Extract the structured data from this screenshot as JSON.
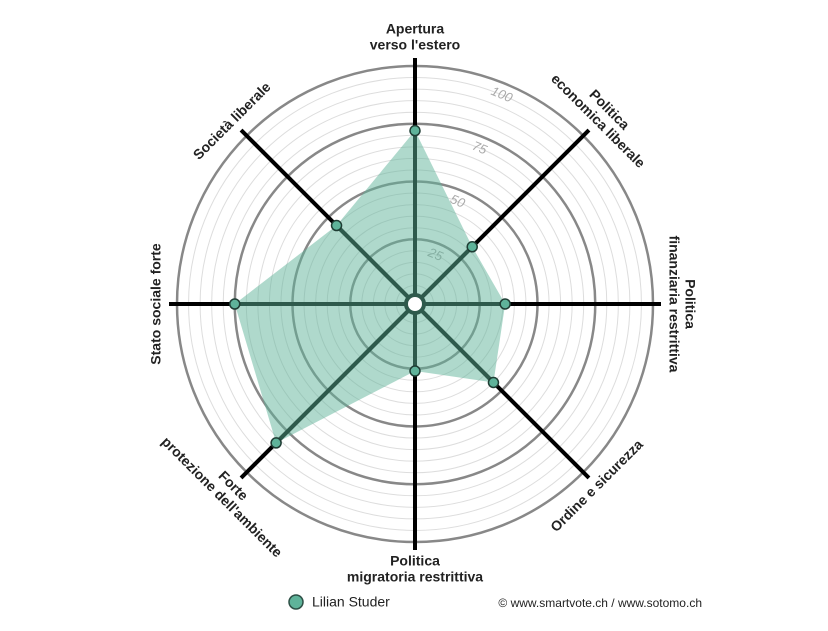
{
  "chart_data": {
    "type": "radar",
    "categories": [
      [
        "Apertura",
        "verso l'estero"
      ],
      [
        "Politica",
        "economica liberale"
      ],
      [
        "Politica",
        "finanziaria restrittiva"
      ],
      [
        "Ordine e sicurezza"
      ],
      [
        "Politica",
        "migratoria restrittiva"
      ],
      [
        "Forte",
        "protezione dell'ambiente"
      ],
      [
        "Stato sociale forte"
      ],
      [
        "Società liberale"
      ]
    ],
    "series": [
      {
        "name": "Lilian Studer",
        "color": "#5fb39a",
        "values": [
          72,
          32,
          36,
          45,
          26,
          82,
          75,
          45
        ]
      }
    ],
    "rlim": [
      0,
      100
    ],
    "rticks": [
      25,
      50,
      75,
      100
    ],
    "grid": true,
    "source": "© www.smartvote.ch / www.sotomo.ch"
  }
}
